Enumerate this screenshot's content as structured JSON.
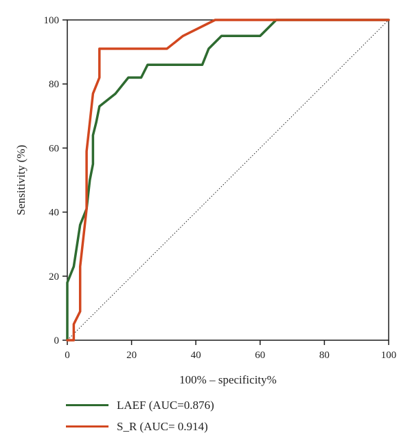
{
  "chart_data": {
    "type": "line",
    "title": "",
    "xlabel": "100% – specificity%",
    "ylabel": "Sensitivity (%)",
    "xlim": [
      0,
      100
    ],
    "ylim": [
      0,
      100
    ],
    "x_ticks": [
      0,
      20,
      40,
      60,
      80,
      100
    ],
    "y_ticks": [
      0,
      20,
      40,
      60,
      80,
      100
    ],
    "grid": false,
    "legend_position": "bottom-left",
    "reference_line": {
      "style": "dotted",
      "from": [
        0,
        0
      ],
      "to": [
        100,
        100
      ],
      "color": "#222222"
    },
    "series": [
      {
        "name": "LAEF (AUC=0.876)",
        "color": "#2e6b30",
        "points": [
          [
            0,
            0
          ],
          [
            0,
            9
          ],
          [
            0,
            18
          ],
          [
            2,
            23
          ],
          [
            4,
            36
          ],
          [
            6,
            41
          ],
          [
            7,
            50
          ],
          [
            8,
            55
          ],
          [
            8,
            64
          ],
          [
            9,
            68
          ],
          [
            10,
            73
          ],
          [
            15,
            77
          ],
          [
            19,
            82
          ],
          [
            23,
            82
          ],
          [
            25,
            86
          ],
          [
            42,
            86
          ],
          [
            44,
            91
          ],
          [
            48,
            95
          ],
          [
            60,
            95
          ],
          [
            65,
            100
          ],
          [
            100,
            100
          ]
        ]
      },
      {
        "name": "S_R (AUC= 0.914)",
        "color": "#d2471f",
        "points": [
          [
            0,
            0
          ],
          [
            2,
            0
          ],
          [
            2,
            5
          ],
          [
            4,
            9
          ],
          [
            4,
            23
          ],
          [
            5,
            32
          ],
          [
            6,
            41
          ],
          [
            6,
            59
          ],
          [
            7,
            68
          ],
          [
            8,
            77
          ],
          [
            10,
            82
          ],
          [
            10,
            91
          ],
          [
            31,
            91
          ],
          [
            36,
            95
          ],
          [
            46,
            100
          ],
          [
            100,
            100
          ]
        ]
      }
    ]
  }
}
